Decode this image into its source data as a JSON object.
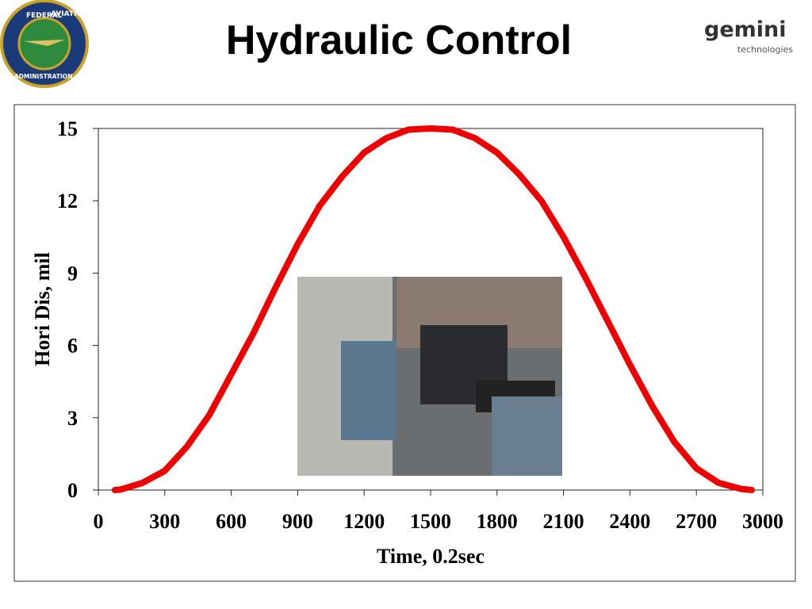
{
  "chart_data": {
    "type": "line",
    "title": "Hydraulic Control",
    "x_label": "Time, 0.2sec",
    "y_label": "Hori Dis, mil",
    "x": [
      75,
      100,
      200,
      300,
      400,
      500,
      600,
      700,
      800,
      900,
      1000,
      1100,
      1200,
      1300,
      1400,
      1500,
      1600,
      1700,
      1800,
      1900,
      2000,
      2100,
      2200,
      2300,
      2400,
      2500,
      2600,
      2700,
      2800,
      2900,
      2950
    ],
    "values": [
      0,
      0.02,
      0.3,
      0.8,
      1.8,
      3.1,
      4.8,
      6.5,
      8.4,
      10.2,
      11.8,
      13.0,
      14.0,
      14.6,
      14.95,
      15,
      14.95,
      14.6,
      14.0,
      13.1,
      12.0,
      10.5,
      8.8,
      7.0,
      5.2,
      3.5,
      2.0,
      0.9,
      0.3,
      0.05,
      0
    ],
    "color": "#ee0000",
    "xlim": [
      0,
      3000
    ],
    "xticks": [
      0,
      300,
      600,
      900,
      1200,
      1500,
      1800,
      2100,
      2400,
      2700,
      3000
    ],
    "ylim": [
      0,
      15
    ],
    "yticks": [
      0,
      3,
      6,
      9,
      12,
      15
    ]
  },
  "logos": {
    "left": [
      "FEDERAL",
      "AVIATION",
      "ADMINISTRATION"
    ],
    "right": [
      "gemini",
      "technologies"
    ]
  }
}
